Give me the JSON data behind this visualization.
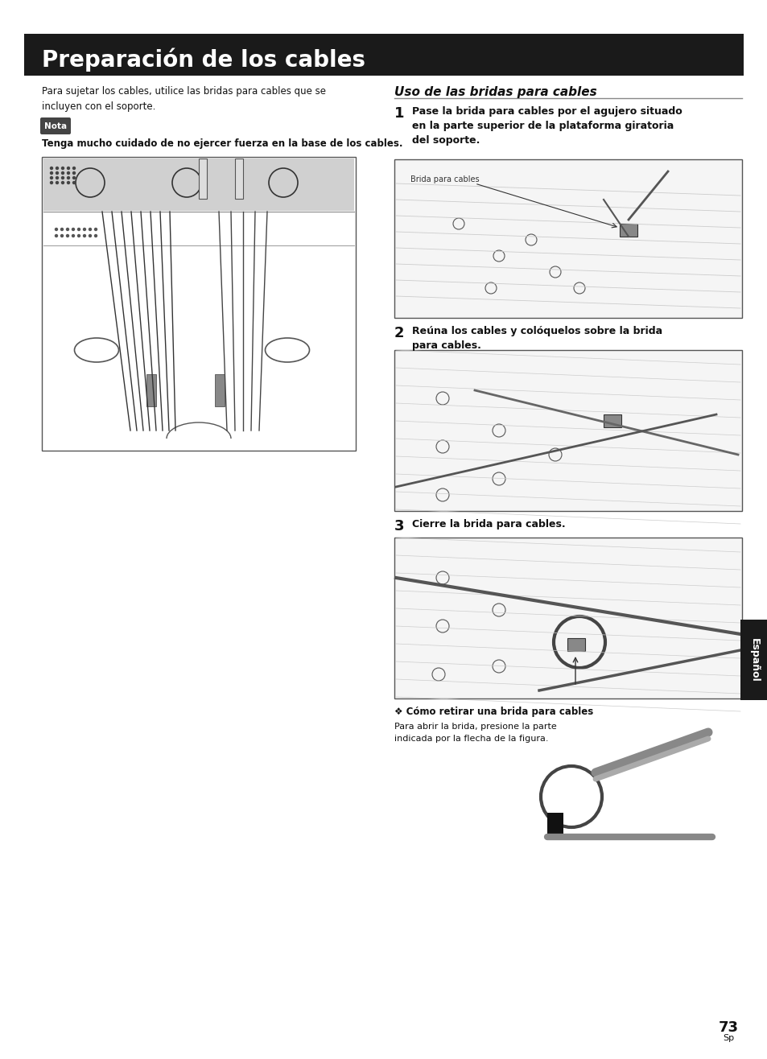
{
  "title": "Preparación de los cables",
  "title_bg": "#1a1a1a",
  "title_color": "#ffffff",
  "title_fontsize": 20,
  "page_bg": "#ffffff",
  "left_intro_text": "Para sujetar los cables, utilice las bridas para cables que se\nincluyen con el soporte.",
  "nota_label": "Nota",
  "nota_bg": "#444444",
  "nota_color": "#ffffff",
  "nota_text": "Tenga mucho cuidado de no ejercer fuerza en la base de los cables.",
  "right_section_title": "Uso de las bridas para cables",
  "step1_num": "1",
  "step1_text": "Pase la brida para cables por el agujero situado\nen la parte superior de la plataforma giratoria\ndel soporte.",
  "step1_label": "Brida para cables",
  "step2_num": "2",
  "step2_text": "Reúna los cables y colóquelos sobre la brida\npara cables.",
  "step3_num": "3",
  "step3_text": "Cierre la brida para cables.",
  "tip_title": "❖ Cómo retirar una brida para cables",
  "tip_text": "Para abrir la brida, presione la parte\nindicada por la flecha de la figura.",
  "page_num": "73",
  "page_sub": "Sp",
  "espanol_label": "Español",
  "espanol_bg": "#1a1a1a",
  "espanol_color": "#ffffff"
}
